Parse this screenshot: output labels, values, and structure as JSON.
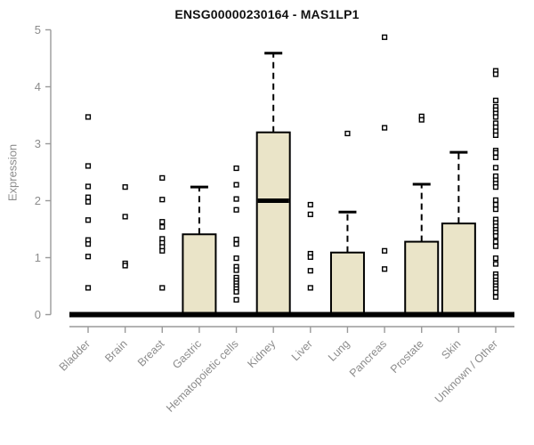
{
  "chart_data": {
    "type": "boxplot",
    "title": "ENSG00000230164 - MAS1LP1",
    "xlabel": "",
    "ylabel": "Expression",
    "ylim": [
      0,
      5
    ],
    "yticks": [
      0,
      1,
      2,
      3,
      4,
      5
    ],
    "grid": false,
    "legend": "none",
    "categories": [
      "Bladder",
      "Brain",
      "Breast",
      "Gastric",
      "Hematopoietic cells",
      "Kidney",
      "Liver",
      "Lung",
      "Pancreas",
      "Prostate",
      "Skin",
      "Unknown / Other"
    ],
    "series": [
      {
        "name": "Bladder",
        "q1": 0,
        "median": 0,
        "q3": 0,
        "whisker_low": 0,
        "whisker_high": 0,
        "outliers": [
          3.47,
          2.61,
          2.25,
          2.06,
          1.98,
          1.66,
          1.31,
          1.24,
          1.02,
          0.47
        ]
      },
      {
        "name": "Brain",
        "q1": 0,
        "median": 0,
        "q3": 0,
        "whisker_low": 0,
        "whisker_high": 0,
        "outliers": [
          2.24,
          1.72,
          0.9,
          0.86
        ]
      },
      {
        "name": "Breast",
        "q1": 0,
        "median": 0,
        "q3": 0,
        "whisker_low": 0,
        "whisker_high": 0,
        "outliers": [
          2.4,
          2.02,
          1.63,
          1.54,
          1.33,
          1.26,
          1.19,
          1.12,
          0.47
        ]
      },
      {
        "name": "Gastric",
        "q1": 0,
        "median": 0,
        "q3": 1.41,
        "whisker_low": 0,
        "whisker_high": 2.24,
        "outliers": []
      },
      {
        "name": "Hematopoietic cells",
        "q1": 0,
        "median": 0,
        "q3": 0,
        "whisker_low": 0,
        "whisker_high": 0,
        "outliers": [
          2.57,
          2.28,
          2.03,
          1.84,
          1.32,
          1.24,
          0.99,
          0.84,
          0.78,
          0.65,
          0.6,
          0.55,
          0.5,
          0.45,
          0.4,
          0.26
        ]
      },
      {
        "name": "Kidney",
        "q1": 0,
        "median": 2.0,
        "q3": 3.2,
        "whisker_low": 0,
        "whisker_high": 4.59,
        "outliers": []
      },
      {
        "name": "Liver",
        "q1": 0,
        "median": 0,
        "q3": 0,
        "whisker_low": 0,
        "whisker_high": 0,
        "outliers": [
          1.93,
          1.76,
          1.07,
          1.01,
          0.77,
          0.47
        ]
      },
      {
        "name": "Lung",
        "q1": 0,
        "median": 0,
        "q3": 1.09,
        "whisker_low": 0,
        "whisker_high": 1.8,
        "outliers": [
          3.18
        ]
      },
      {
        "name": "Pancreas",
        "q1": 0,
        "median": 0,
        "q3": 0,
        "whisker_low": 0,
        "whisker_high": 0,
        "outliers": [
          4.87,
          3.28,
          1.12,
          0.8
        ]
      },
      {
        "name": "Prostate",
        "q1": 0,
        "median": 0,
        "q3": 1.28,
        "whisker_low": 0,
        "whisker_high": 2.29,
        "outliers": [
          3.48,
          3.42
        ]
      },
      {
        "name": "Skin",
        "q1": 0,
        "median": 0,
        "q3": 1.6,
        "whisker_low": 0,
        "whisker_high": 2.85,
        "outliers": []
      },
      {
        "name": "Unknown / Other",
        "q1": 0,
        "median": 0,
        "q3": 0,
        "whisker_low": 0,
        "whisker_high": 0,
        "outliers": [
          4.28,
          4.22,
          3.76,
          3.65,
          3.59,
          3.53,
          3.47,
          3.36,
          3.29,
          3.22,
          3.15,
          2.88,
          2.84,
          2.76,
          2.58,
          2.43,
          2.36,
          2.3,
          2.24,
          2.01,
          1.93,
          1.85,
          1.67,
          1.61,
          1.55,
          1.49,
          1.44,
          1.38,
          1.28,
          1.2,
          0.99,
          0.89,
          0.71,
          0.66,
          0.6,
          0.55,
          0.5,
          0.45,
          0.39,
          0.31
        ]
      }
    ]
  },
  "colors": {
    "box_fill": "#EAE4C8",
    "box_border": "#000000",
    "median": "#000000",
    "zero_bar": "#000000",
    "outlier_stroke": "#000000",
    "outlier_fill": "#ffffff",
    "axis_line": "#9a9a9a",
    "tick_label": "#8c8c8c",
    "title_color": "#111111"
  }
}
